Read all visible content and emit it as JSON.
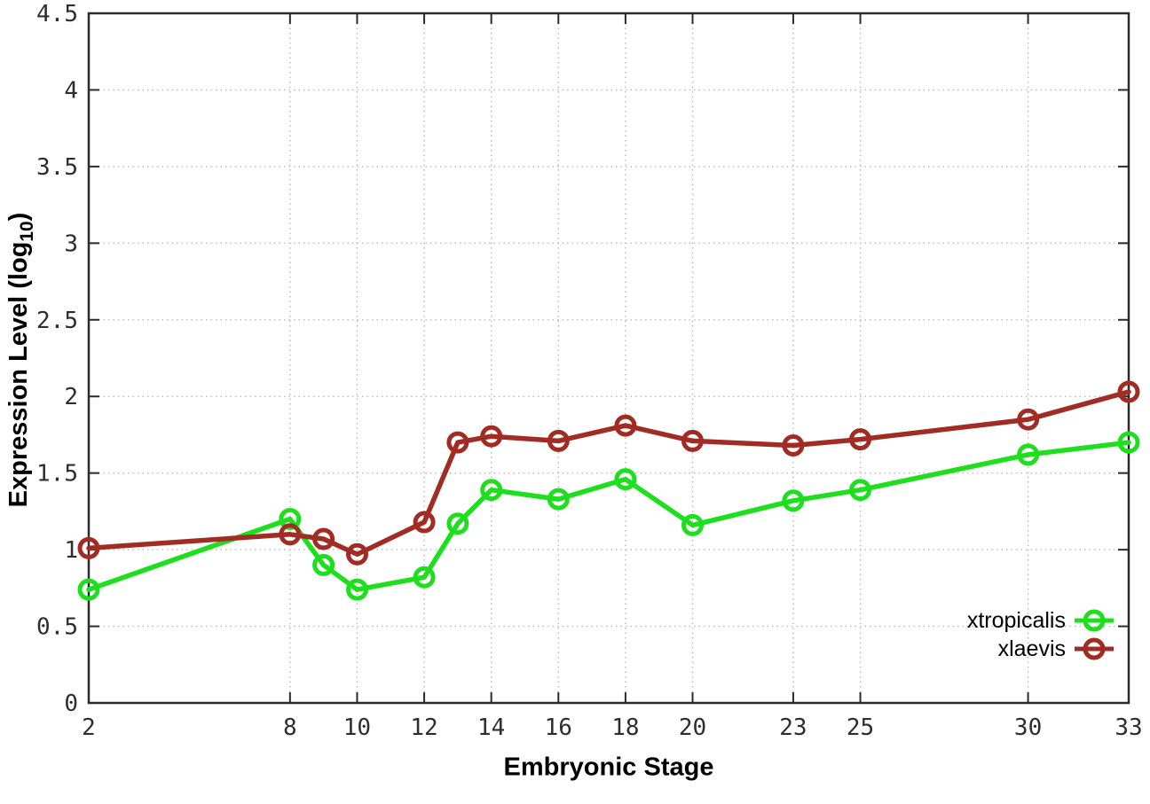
{
  "chart_data": {
    "type": "line",
    "title": "",
    "xlabel": "Embryonic Stage",
    "ylabel": {
      "text": "Expression Level (log",
      "sub": "10",
      "close": ")"
    },
    "x": [
      2,
      8,
      9,
      10,
      12,
      13,
      14,
      16,
      18,
      20,
      23,
      25,
      30,
      33
    ],
    "x_ticks": [
      2,
      8,
      10,
      12,
      14,
      16,
      18,
      20,
      23,
      25,
      30,
      33
    ],
    "y_ticks": [
      0,
      0.5,
      1,
      1.5,
      2,
      2.5,
      3,
      3.5,
      4,
      4.5
    ],
    "y_tick_labels": [
      "0",
      "0.5",
      "1",
      "1.5",
      "2",
      "2.5",
      "3",
      "3.5",
      "4",
      "4.5"
    ],
    "xlim": [
      2,
      33
    ],
    "ylim": [
      0,
      4.5
    ],
    "grid": true,
    "legend_position": "inside-bottom-right",
    "series": [
      {
        "name": "xtropicalis",
        "color": "#1edf1e",
        "values": [
          0.74,
          1.2,
          0.9,
          0.74,
          0.82,
          1.17,
          1.39,
          1.33,
          1.46,
          1.16,
          1.32,
          1.39,
          1.62,
          1.7
        ]
      },
      {
        "name": "xlaevis",
        "color": "#a12c24",
        "values": [
          1.01,
          1.1,
          1.07,
          0.97,
          1.18,
          1.7,
          1.74,
          1.71,
          1.81,
          1.71,
          1.68,
          1.72,
          1.85,
          2.03
        ]
      }
    ],
    "style": {
      "grid_color": "#b9b9b9",
      "axis_color": "#2b2b2b",
      "tick_text_color": "#2e2e2e"
    }
  }
}
